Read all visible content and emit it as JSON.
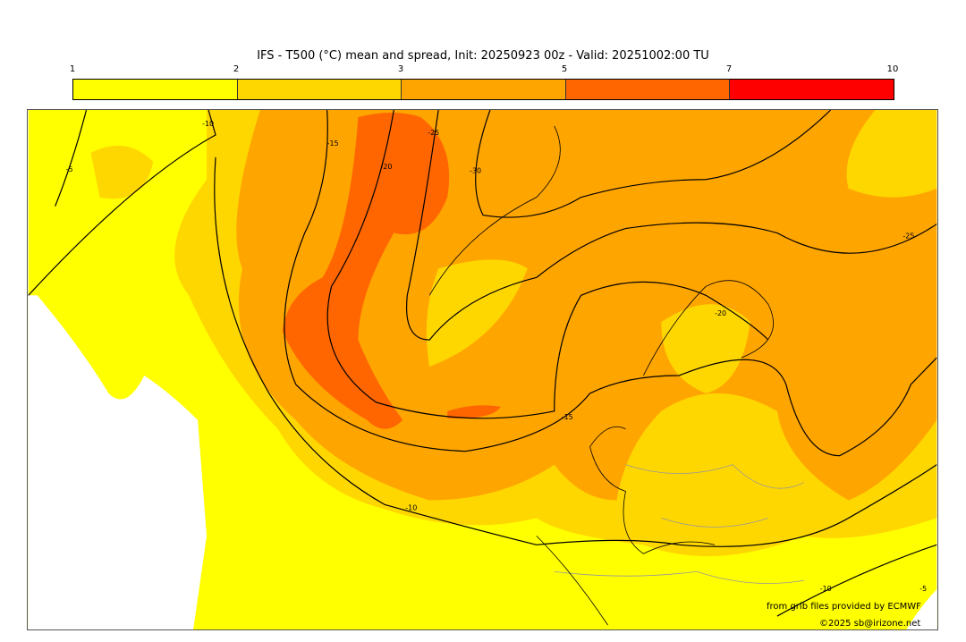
{
  "title": "IFS - T500 (°C) mean and spread, Init: 20250923 00z - Valid: 20251002:00 TU",
  "colorbar": {
    "ticks": [
      "1",
      "2",
      "3",
      "5",
      "7",
      "10"
    ],
    "colors": [
      "#FFFF00",
      "#FFD700",
      "#FFA500",
      "#FF6600",
      "#FF0000"
    ]
  },
  "contour_labels": [
    "-10",
    "-5",
    "-15",
    "-20",
    "-25",
    "-30",
    "-25",
    "-20",
    "-15",
    "-10",
    "-10",
    "-5"
  ],
  "credits": {
    "source": "from grib files provided by ECMWF",
    "copyright": "©2025 sb@irizone.net"
  }
}
